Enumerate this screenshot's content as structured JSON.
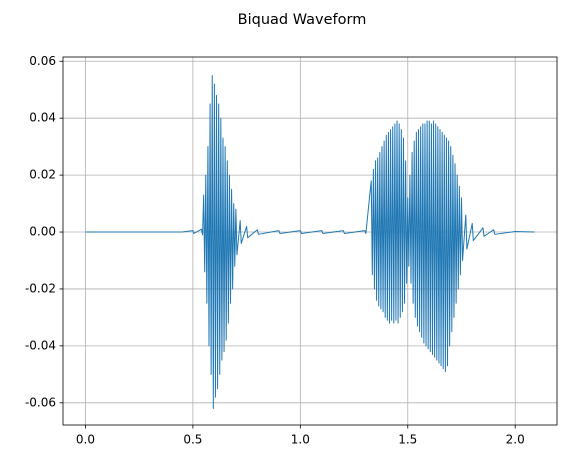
{
  "chart_data": {
    "type": "line",
    "title": "Biquad Waveform",
    "color": "#1f77b4",
    "grid": true,
    "xlim": [
      -0.1045,
      2.1945
    ],
    "ylim": [
      -0.0678,
      0.0615
    ],
    "xticks": [
      {
        "value": 0,
        "label": "0.0"
      },
      {
        "value": 0.5,
        "label": "0.5"
      },
      {
        "value": 1,
        "label": "1.0"
      },
      {
        "value": 1.5,
        "label": "1.5"
      },
      {
        "value": 2,
        "label": "2.0"
      }
    ],
    "yticks": [
      {
        "value": -0.06,
        "label": "-0.06"
      },
      {
        "value": -0.04,
        "label": "-0.04"
      },
      {
        "value": -0.02,
        "label": "-0.02"
      },
      {
        "value": 0,
        "label": "0.00"
      },
      {
        "value": 0.02,
        "label": "0.02"
      },
      {
        "value": 0.04,
        "label": "0.04"
      },
      {
        "value": 0.06,
        "label": "0.06"
      }
    ],
    "x": [
      0,
      0.45,
      0.5,
      0.505,
      0.54,
      0.545,
      0.55,
      0.555,
      0.56,
      0.565,
      0.57,
      0.575,
      0.58,
      0.585,
      0.59,
      0.595,
      0.6,
      0.605,
      0.61,
      0.615,
      0.62,
      0.625,
      0.63,
      0.635,
      0.64,
      0.645,
      0.65,
      0.655,
      0.66,
      0.665,
      0.67,
      0.675,
      0.68,
      0.685,
      0.69,
      0.695,
      0.7,
      0.705,
      0.72,
      0.725,
      0.75,
      0.755,
      0.8,
      0.805,
      0.9,
      0.905,
      1.0,
      1.005,
      1.1,
      1.105,
      1.2,
      1.205,
      1.3,
      1.305,
      1.33,
      1.335,
      1.34,
      1.345,
      1.35,
      1.355,
      1.36,
      1.365,
      1.37,
      1.375,
      1.38,
      1.385,
      1.39,
      1.395,
      1.4,
      1.405,
      1.41,
      1.415,
      1.42,
      1.425,
      1.43,
      1.435,
      1.44,
      1.445,
      1.45,
      1.455,
      1.46,
      1.465,
      1.47,
      1.475,
      1.48,
      1.485,
      1.49,
      1.495,
      1.5,
      1.505,
      1.51,
      1.515,
      1.52,
      1.525,
      1.53,
      1.535,
      1.54,
      1.545,
      1.55,
      1.555,
      1.56,
      1.565,
      1.57,
      1.575,
      1.58,
      1.585,
      1.59,
      1.595,
      1.6,
      1.605,
      1.61,
      1.615,
      1.62,
      1.625,
      1.63,
      1.635,
      1.64,
      1.645,
      1.65,
      1.655,
      1.66,
      1.665,
      1.67,
      1.675,
      1.68,
      1.685,
      1.69,
      1.695,
      1.7,
      1.705,
      1.71,
      1.715,
      1.72,
      1.725,
      1.73,
      1.735,
      1.74,
      1.745,
      1.75,
      1.755,
      1.77,
      1.775,
      1.8,
      1.805,
      1.85,
      1.855,
      1.9,
      1.905,
      2.0,
      2.09
    ],
    "values": [
      0,
      0,
      0.0005,
      -0.0005,
      0.001,
      -0.001,
      0.013,
      -0.014,
      0.02,
      -0.025,
      0.03,
      -0.04,
      0.045,
      -0.05,
      0.055,
      -0.062,
      0.052,
      -0.058,
      0.048,
      -0.055,
      0.045,
      -0.05,
      0.04,
      -0.045,
      0.033,
      -0.042,
      0.03,
      -0.038,
      0.025,
      -0.032,
      0.02,
      -0.025,
      0.015,
      -0.02,
      0.01,
      -0.012,
      0.008,
      -0.008,
      0.004,
      -0.004,
      0.002,
      -0.002,
      0.0008,
      -0.0008,
      0.0005,
      -0.0005,
      0.0005,
      -0.0005,
      0.0005,
      -0.0005,
      0.0005,
      -0.0005,
      0.0005,
      -0.0005,
      0.018,
      -0.015,
      0.022,
      -0.02,
      0.025,
      -0.024,
      0.026,
      -0.026,
      0.028,
      -0.027,
      0.03,
      -0.028,
      0.032,
      -0.03,
      0.034,
      -0.031,
      0.035,
      -0.032,
      0.036,
      -0.031,
      0.037,
      -0.032,
      0.038,
      -0.031,
      0.039,
      -0.032,
      0.038,
      -0.03,
      0.036,
      -0.028,
      0.033,
      -0.025,
      0.025,
      -0.018,
      0.012,
      -0.012,
      0.02,
      -0.018,
      0.028,
      -0.025,
      0.032,
      -0.03,
      0.035,
      -0.033,
      0.036,
      -0.035,
      0.037,
      -0.037,
      0.038,
      -0.039,
      0.038,
      -0.04,
      0.039,
      -0.041,
      0.039,
      -0.042,
      0.038,
      -0.043,
      0.039,
      -0.044,
      0.038,
      -0.045,
      0.037,
      -0.046,
      0.036,
      -0.047,
      0.035,
      -0.048,
      0.034,
      -0.049,
      0.033,
      -0.047,
      0.032,
      -0.04,
      0.03,
      -0.035,
      0.027,
      -0.03,
      0.024,
      -0.025,
      0.02,
      -0.02,
      0.016,
      -0.015,
      0.012,
      -0.01,
      0.006,
      -0.006,
      0.003,
      -0.003,
      0.0015,
      -0.0015,
      0.0008,
      -0.0008,
      0.0002,
      0
    ]
  }
}
